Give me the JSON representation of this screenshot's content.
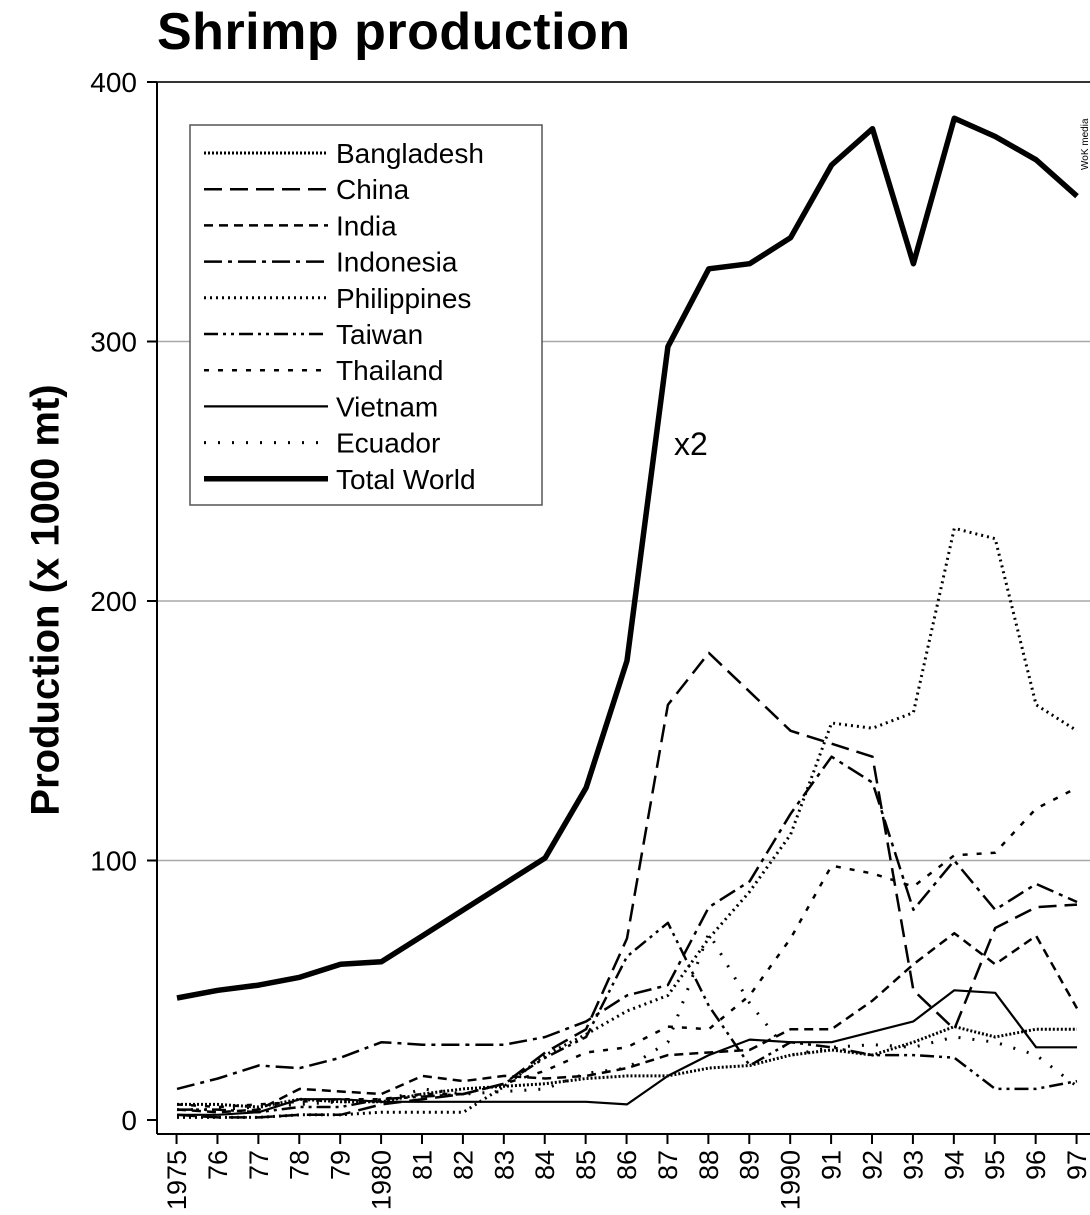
{
  "chart_data": {
    "type": "line",
    "title": "Shrimp production",
    "ylabel": "Production (x 1000 mt)",
    "xlabel": "",
    "ylim": [
      0,
      400
    ],
    "yticks": [
      0,
      100,
      200,
      300,
      400
    ],
    "grid": true,
    "legend_position": "top-left",
    "annotation": "x2",
    "watermark": "WoK media",
    "x": [
      1975,
      1976,
      1977,
      1978,
      1979,
      1980,
      1981,
      1982,
      1983,
      1984,
      1985,
      1986,
      1987,
      1988,
      1989,
      1990,
      1991,
      1992,
      1993,
      1994,
      1995,
      1996,
      1997
    ],
    "xtick_labels": [
      "1975",
      "76",
      "77",
      "78",
      "79",
      "1980",
      "81",
      "82",
      "83",
      "84",
      "85",
      "86",
      "87",
      "88",
      "89",
      "1990",
      "91",
      "92",
      "93",
      "94",
      "95",
      "96",
      "97"
    ],
    "series": [
      {
        "name": "Bangladesh",
        "style": "dense-dot",
        "values": [
          6,
          6,
          5,
          8,
          7,
          7,
          10,
          12,
          13,
          14,
          16,
          17,
          17,
          20,
          21,
          25,
          27,
          25,
          30,
          36,
          32,
          35,
          35
        ]
      },
      {
        "name": "China",
        "style": "long-dash",
        "values": [
          2,
          1,
          1,
          2,
          2,
          6,
          8,
          10,
          14,
          26,
          35,
          70,
          160,
          180,
          165,
          150,
          145,
          140,
          50,
          35,
          74,
          82,
          83
        ]
      },
      {
        "name": "India",
        "style": "short-dash",
        "values": [
          4,
          3,
          4,
          12,
          11,
          10,
          17,
          15,
          17,
          16,
          17,
          20,
          25,
          26,
          27,
          35,
          35,
          46,
          60,
          72,
          60,
          71,
          43
        ]
      },
      {
        "name": "Indonesia",
        "style": "dash-dot",
        "values": [
          12,
          16,
          21,
          20,
          24,
          30,
          29,
          29,
          29,
          32,
          38,
          48,
          52,
          82,
          92,
          118,
          140,
          130,
          81,
          100,
          81,
          91,
          84
        ]
      },
      {
        "name": "Philippines",
        "style": "dot",
        "values": [
          1,
          1,
          1,
          2,
          2,
          3,
          3,
          3,
          13,
          25,
          33,
          42,
          48,
          70,
          88,
          110,
          153,
          151,
          157,
          228,
          224,
          160,
          150
        ]
      },
      {
        "name": "Taiwan",
        "style": "dash-dot-dot",
        "values": [
          4,
          4,
          3,
          5,
          5,
          8,
          9,
          10,
          14,
          24,
          32,
          63,
          76,
          44,
          21,
          30,
          28,
          25,
          25,
          24,
          12,
          12,
          15
        ]
      },
      {
        "name": "Thailand",
        "style": "sparse-dash",
        "values": [
          6,
          5,
          6,
          7,
          8,
          8,
          10,
          10,
          14,
          19,
          26,
          28,
          36,
          35,
          48,
          70,
          98,
          95,
          90,
          102,
          103,
          120,
          128
        ]
      },
      {
        "name": "Vietnam",
        "style": "solid",
        "values": [
          2,
          2,
          3,
          8,
          8,
          7,
          7,
          7,
          7,
          7,
          7,
          6,
          17,
          25,
          31,
          30,
          30,
          34,
          38,
          50,
          49,
          28,
          28
        ]
      },
      {
        "name": "Ecuador",
        "style": "sparse-dot",
        "values": [
          4,
          4,
          5,
          6,
          7,
          7,
          12,
          10,
          11,
          12,
          18,
          20,
          30,
          72,
          45,
          25,
          28,
          29,
          28,
          32,
          30,
          25,
          13
        ]
      },
      {
        "name": "Total World",
        "style": "bold",
        "values": [
          47,
          50,
          52,
          55,
          60,
          61,
          71,
          81,
          91,
          101,
          128,
          177,
          298,
          328,
          330,
          340,
          368,
          382,
          330,
          386,
          379,
          370,
          356
        ]
      }
    ]
  }
}
